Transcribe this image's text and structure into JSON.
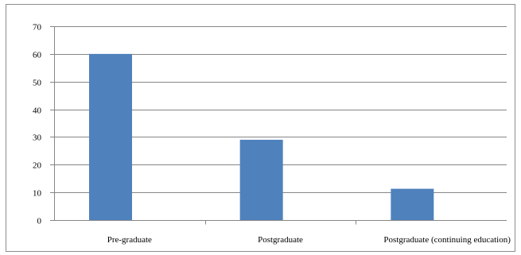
{
  "chart_data": {
    "type": "bar",
    "categories": [
      "Pre-graduate",
      "Postgraduate",
      "Postgraduate (continuing education)"
    ],
    "values": [
      60,
      29,
      11.3
    ],
    "ylim": [
      0,
      70
    ],
    "yticks": [
      0,
      10,
      20,
      30,
      40,
      50,
      60,
      70
    ],
    "grid": true,
    "colors": {
      "bar": "#4f81bd",
      "grid": "#868686",
      "axis": "#868686"
    }
  }
}
